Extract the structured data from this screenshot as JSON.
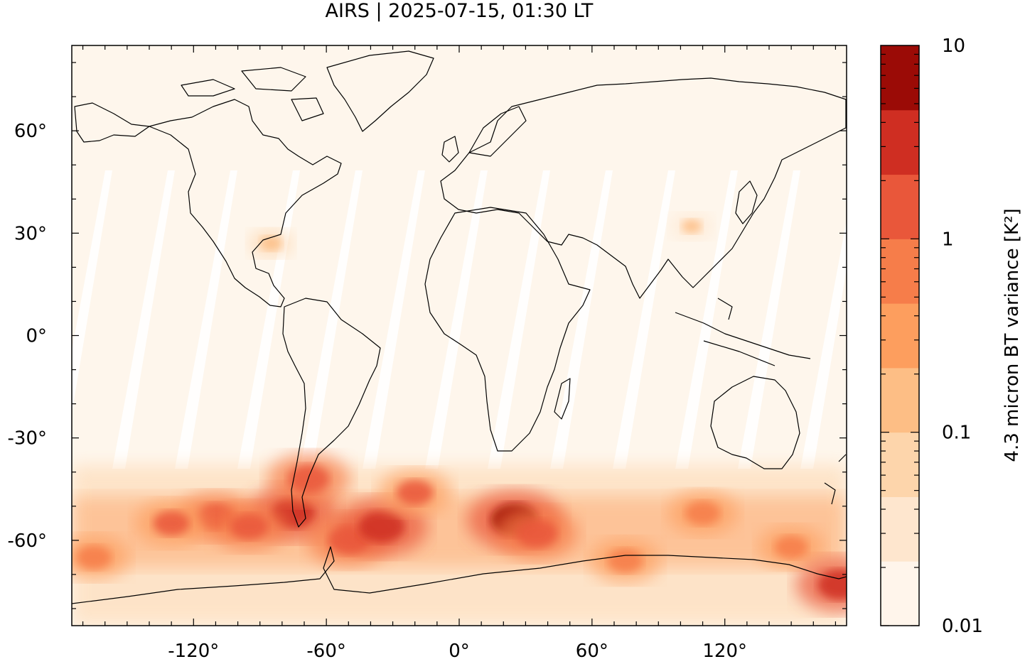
{
  "title": "AIRS | 2025-07-15, 01:30 LT",
  "map": {
    "x_ticks": [
      -120,
      -60,
      0,
      60,
      120
    ],
    "x_tick_labels": [
      "-120°",
      "-60°",
      "0°",
      "60°",
      "120°"
    ],
    "y_ticks": [
      60,
      30,
      0,
      -30,
      -60
    ],
    "y_tick_labels": [
      "60°",
      "30°",
      "0°",
      "-30°",
      "-60°"
    ],
    "lon_range": [
      -175,
      175
    ],
    "lat_range": [
      -85,
      85
    ],
    "background_color": "#fef6ec",
    "gap_color": "#ffffff",
    "coastline_color": "#000000"
  },
  "colorbar": {
    "label": "4.3 micron BT variance [K²]",
    "scale": "log",
    "range": [
      0.01,
      10
    ],
    "tick_labels": [
      "10",
      "1",
      "0.1",
      "0.01"
    ],
    "tick_values": [
      10,
      1,
      0.1,
      0.01
    ],
    "colors": [
      "#fff5eb",
      "#fee6ce",
      "#fdd5ab",
      "#fdbe85",
      "#fd9e5e",
      "#f67d4a",
      "#e9573a",
      "#cf2e22",
      "#9b0b06"
    ]
  },
  "chart_data": {
    "type": "heatmap",
    "title": "AIRS | 2025-07-15, 01:30 LT",
    "xlabel": "",
    "ylabel": "",
    "colorbar_label": "4.3 micron BT variance [K²]",
    "xlim": [
      -175,
      175
    ],
    "ylim": [
      -85,
      85
    ],
    "clim": [
      0.01,
      10
    ],
    "color_scale": "log",
    "hotspots": [
      {
        "lon": -75,
        "lat": -52,
        "value": 3.0
      },
      {
        "lon": -68,
        "lat": -42,
        "value": 2.0
      },
      {
        "lon": -110,
        "lat": -53,
        "value": 1.2
      },
      {
        "lon": -130,
        "lat": -55,
        "value": 1.0
      },
      {
        "lon": -95,
        "lat": -56,
        "value": 1.2
      },
      {
        "lon": -50,
        "lat": -60,
        "value": 2.0
      },
      {
        "lon": -35,
        "lat": -56,
        "value": 4.0
      },
      {
        "lon": -20,
        "lat": -46,
        "value": 1.0
      },
      {
        "lon": 25,
        "lat": -54,
        "value": 5.0
      },
      {
        "lon": 35,
        "lat": -58,
        "value": 2.0
      },
      {
        "lon": 75,
        "lat": -66,
        "value": 0.8
      },
      {
        "lon": 110,
        "lat": -52,
        "value": 0.8
      },
      {
        "lon": 150,
        "lat": -62,
        "value": 0.6
      },
      {
        "lon": 172,
        "lat": -73,
        "value": 3.0
      },
      {
        "lon": -165,
        "lat": -65,
        "value": 0.8
      },
      {
        "lon": -85,
        "lat": 27,
        "value": 0.12
      },
      {
        "lon": 105,
        "lat": 32,
        "value": 0.1
      }
    ]
  }
}
